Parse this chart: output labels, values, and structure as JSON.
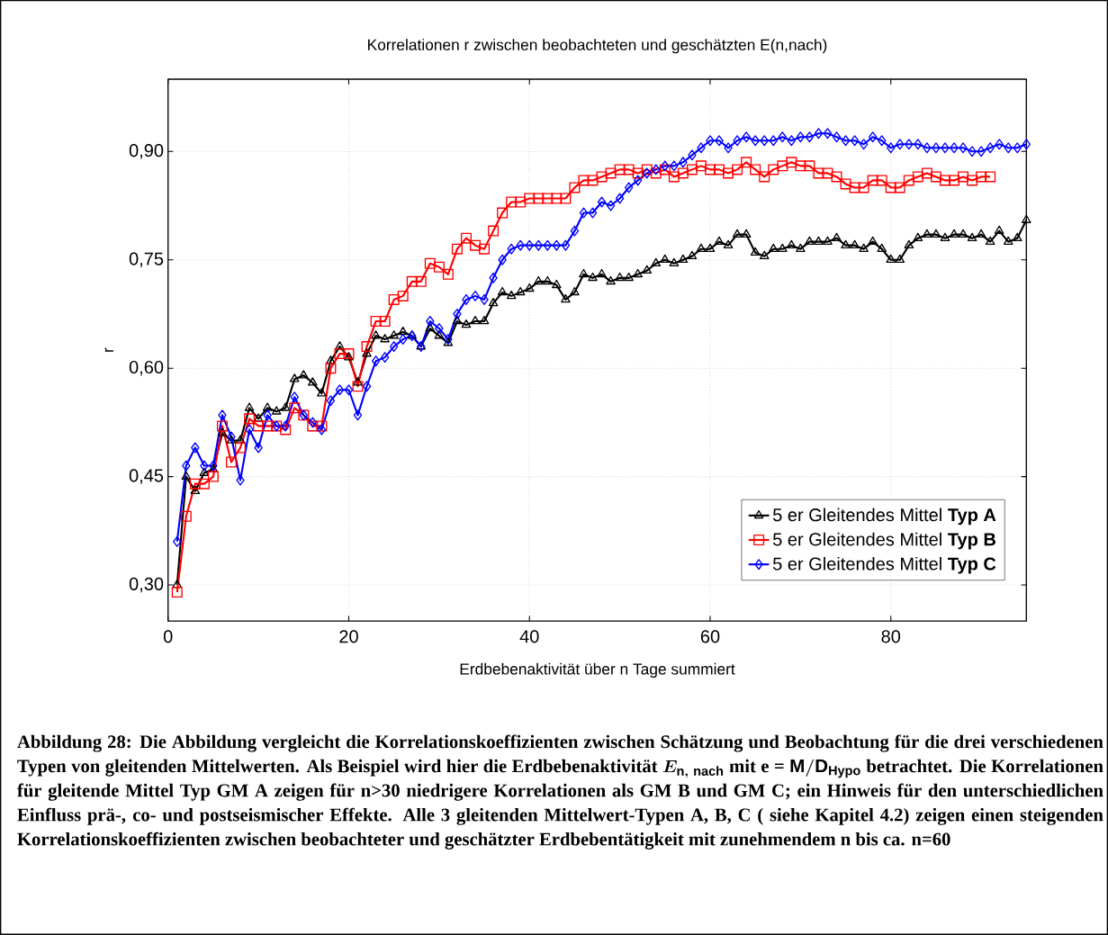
{
  "chart_data": {
    "type": "line",
    "title": "Korrelationen r zwischen beobachteten und geschätzten E(n,nach)",
    "xlabel": "Erdbebenaktivität über n Tage summiert",
    "ylabel": "r",
    "xlim": [
      0,
      95
    ],
    "ylim": [
      0.25,
      1.0
    ],
    "xticks": [
      0,
      20,
      40,
      60,
      80
    ],
    "yticks": [
      {
        "value": 0.3,
        "label": "0,30"
      },
      {
        "value": 0.45,
        "label": "0,45"
      },
      {
        "value": 0.6,
        "label": "0,60"
      },
      {
        "value": 0.75,
        "label": "0,75"
      },
      {
        "value": 0.9,
        "label": "0,90"
      }
    ],
    "grid": true,
    "legend": "bottom right",
    "line_style": "solid",
    "series": [
      {
        "name": "5 er Gleitendes Mittel **Typ A**",
        "color": "#000000",
        "marker": "triangle",
        "x": [
          1,
          2,
          3,
          4,
          5,
          6,
          7,
          8,
          9,
          10,
          11,
          12,
          13,
          14,
          15,
          16,
          17,
          18,
          19,
          20,
          21,
          22,
          23,
          24,
          25,
          26,
          27,
          28,
          29,
          30,
          31,
          32,
          33,
          34,
          35,
          36,
          37,
          38,
          39,
          40,
          41,
          42,
          43,
          44,
          45,
          46,
          47,
          48,
          49,
          50,
          51,
          52,
          53,
          54,
          55,
          56,
          57,
          58,
          59,
          60,
          61,
          62,
          63,
          64,
          65,
          66,
          67,
          68,
          69,
          70,
          71,
          72,
          73,
          74,
          75,
          76,
          77,
          78,
          79,
          80,
          81,
          82,
          83,
          84,
          85,
          86,
          87,
          88,
          89,
          90,
          91,
          92,
          93,
          94,
          95
        ],
        "values": [
          0.3,
          0.45,
          0.43,
          0.455,
          0.46,
          0.51,
          0.5,
          0.5,
          0.545,
          0.53,
          0.545,
          0.54,
          0.545,
          0.585,
          0.59,
          0.58,
          0.565,
          0.61,
          0.63,
          0.615,
          0.58,
          0.62,
          0.645,
          0.64,
          0.645,
          0.65,
          0.645,
          0.63,
          0.655,
          0.645,
          0.635,
          0.665,
          0.66,
          0.665,
          0.665,
          0.69,
          0.705,
          0.7,
          0.705,
          0.71,
          0.72,
          0.72,
          0.715,
          0.695,
          0.705,
          0.73,
          0.725,
          0.73,
          0.72,
          0.725,
          0.725,
          0.73,
          0.735,
          0.745,
          0.75,
          0.745,
          0.75,
          0.755,
          0.765,
          0.765,
          0.775,
          0.77,
          0.785,
          0.785,
          0.76,
          0.755,
          0.765,
          0.765,
          0.77,
          0.765,
          0.775,
          0.775,
          0.775,
          0.78,
          0.77,
          0.77,
          0.765,
          0.775,
          0.765,
          0.75,
          0.75,
          0.77,
          0.78,
          0.785,
          0.785,
          0.78,
          0.785,
          0.785,
          0.78,
          0.785,
          0.775,
          0.79,
          0.775,
          0.78,
          0.805
        ]
      },
      {
        "name": "5 er Gleitendes Mittel **Typ B**",
        "color": "#ff0000",
        "marker": "square",
        "x": [
          1,
          2,
          3,
          4,
          5,
          6,
          7,
          8,
          9,
          10,
          11,
          12,
          13,
          14,
          15,
          16,
          17,
          18,
          19,
          20,
          21,
          22,
          23,
          24,
          25,
          26,
          27,
          28,
          29,
          30,
          31,
          32,
          33,
          34,
          35,
          36,
          37,
          38,
          39,
          40,
          41,
          42,
          43,
          44,
          45,
          46,
          47,
          48,
          49,
          50,
          51,
          52,
          53,
          54,
          55,
          56,
          57,
          58,
          59,
          60,
          61,
          62,
          63,
          64,
          65,
          66,
          67,
          68,
          69,
          70,
          71,
          72,
          73,
          74,
          75,
          76,
          77,
          78,
          79,
          80,
          81,
          82,
          83,
          84,
          85,
          86,
          87,
          88,
          89,
          90,
          91
        ],
        "values": [
          0.29,
          0.395,
          0.44,
          0.44,
          0.45,
          0.52,
          0.47,
          0.49,
          0.53,
          0.52,
          0.52,
          0.52,
          0.515,
          0.545,
          0.535,
          0.52,
          0.52,
          0.6,
          0.62,
          0.62,
          0.575,
          0.63,
          0.665,
          0.665,
          0.695,
          0.7,
          0.72,
          0.72,
          0.745,
          0.74,
          0.73,
          0.765,
          0.78,
          0.77,
          0.765,
          0.79,
          0.815,
          0.83,
          0.83,
          0.835,
          0.835,
          0.835,
          0.835,
          0.835,
          0.85,
          0.86,
          0.86,
          0.865,
          0.87,
          0.875,
          0.875,
          0.87,
          0.875,
          0.87,
          0.875,
          0.865,
          0.87,
          0.875,
          0.88,
          0.875,
          0.875,
          0.87,
          0.875,
          0.885,
          0.875,
          0.865,
          0.875,
          0.88,
          0.885,
          0.88,
          0.88,
          0.87,
          0.87,
          0.865,
          0.855,
          0.85,
          0.85,
          0.86,
          0.86,
          0.85,
          0.85,
          0.86,
          0.865,
          0.87,
          0.865,
          0.86,
          0.86,
          0.865,
          0.86,
          0.865,
          0.865
        ]
      },
      {
        "name": "5 er Gleitendes Mittel **Typ C**",
        "color": "#0000ff",
        "marker": "diamond",
        "x": [
          1,
          2,
          3,
          4,
          5,
          6,
          7,
          8,
          9,
          10,
          11,
          12,
          13,
          14,
          15,
          16,
          17,
          18,
          19,
          20,
          21,
          22,
          23,
          24,
          25,
          26,
          27,
          28,
          29,
          30,
          31,
          32,
          33,
          34,
          35,
          36,
          37,
          38,
          39,
          40,
          41,
          42,
          43,
          44,
          45,
          46,
          47,
          48,
          49,
          50,
          51,
          52,
          53,
          54,
          55,
          56,
          57,
          58,
          59,
          60,
          61,
          62,
          63,
          64,
          65,
          66,
          67,
          68,
          69,
          70,
          71,
          72,
          73,
          74,
          75,
          76,
          77,
          78,
          79,
          80,
          81,
          82,
          83,
          84,
          85,
          86,
          87,
          88,
          89,
          90,
          91,
          92,
          93,
          94,
          95
        ],
        "values": [
          0.36,
          0.465,
          0.49,
          0.465,
          0.465,
          0.535,
          0.505,
          0.445,
          0.515,
          0.49,
          0.535,
          0.52,
          0.52,
          0.56,
          0.535,
          0.525,
          0.515,
          0.555,
          0.57,
          0.57,
          0.535,
          0.575,
          0.61,
          0.615,
          0.63,
          0.64,
          0.645,
          0.63,
          0.665,
          0.655,
          0.64,
          0.675,
          0.695,
          0.7,
          0.695,
          0.725,
          0.75,
          0.765,
          0.77,
          0.77,
          0.77,
          0.77,
          0.77,
          0.77,
          0.79,
          0.815,
          0.815,
          0.83,
          0.825,
          0.835,
          0.85,
          0.86,
          0.87,
          0.875,
          0.88,
          0.88,
          0.885,
          0.895,
          0.905,
          0.915,
          0.915,
          0.905,
          0.915,
          0.92,
          0.915,
          0.915,
          0.915,
          0.92,
          0.915,
          0.92,
          0.92,
          0.925,
          0.925,
          0.92,
          0.915,
          0.915,
          0.91,
          0.92,
          0.915,
          0.905,
          0.91,
          0.91,
          0.91,
          0.905,
          0.905,
          0.905,
          0.905,
          0.905,
          0.9,
          0.9,
          0.905,
          0.91,
          0.905,
          0.905,
          0.91
        ]
      }
    ],
    "annotations": [
      "Abbildung 28: Die Abbildung vergleicht die Korrelationskoeffizienten zwischen Schätzung und Beobachtung für die drei verschiedenen Typen von gleitenden Mittelwerten. Als Beispiel wird hier die Erdbebenaktivität",
      "E_{\\mathrm{n,\\ nach}}",
      "mit e =",
      "\\mathrm{M/D_{Hypo}}",
      "betrachtet. Die Korrelationen für gleitende Mittel Typ GM A zeigen für n>30 niedrigere Korrelationen als GM B und GM C; ein Hinweis für den unterschiedlichen Einfluss prä-, co- und postseismischer Effekte. Alle 3 gleitenden Mittelwert-Typen A, B, C ( siehe Kapitel 4.2) zeigen einen steigenden Korrelationskoeffizienten zwischen beobachteter und geschätzter Erdbebentätigkeit mit zunehmendem n  bis ca. n=60"
    ]
  }
}
